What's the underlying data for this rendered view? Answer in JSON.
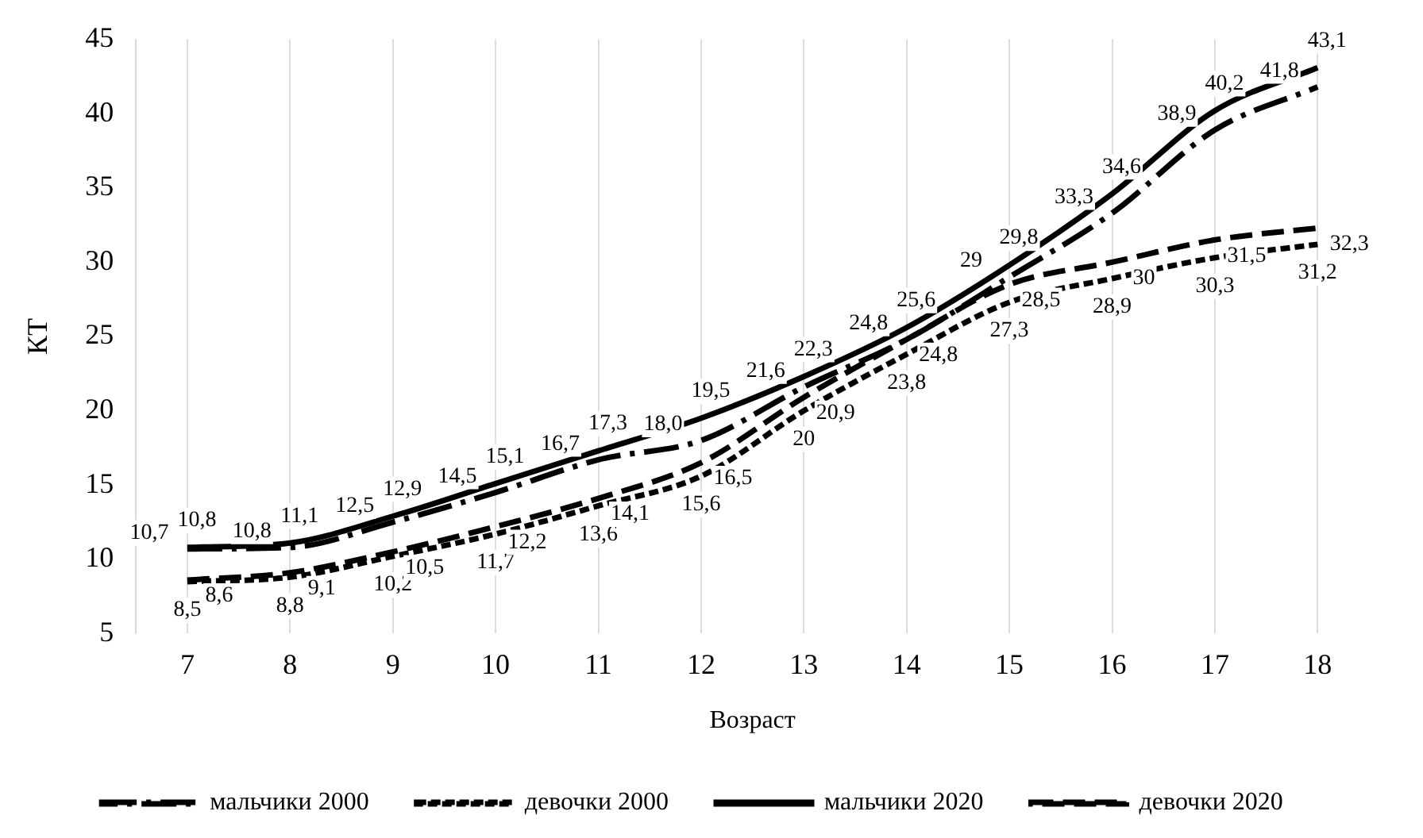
{
  "chart_data": {
    "type": "line",
    "xlabel": "Возраст",
    "ylabel": "КТ",
    "categories": [
      "7",
      "8",
      "9",
      "10",
      "11",
      "12",
      "13",
      "14",
      "15",
      "16",
      "17",
      "18"
    ],
    "series": [
      {
        "name": "мальчики 2000",
        "color": "#000000",
        "line_style": "dashed",
        "values": [
          10.7,
          10.8,
          12.5,
          14.5,
          16.7,
          18.0,
          21.6,
          24.8,
          29,
          33.3,
          38.9,
          41.8
        ],
        "value_labels": [
          "10,7",
          "10,8",
          "12,5",
          "14,5",
          "16,7",
          "18,0",
          "21,6",
          "24,8",
          "29",
          "33,3",
          "38,9",
          "41,8"
        ]
      },
      {
        "name": "девочки 2000",
        "color": "#000000",
        "line_style": "dotted",
        "values": [
          8.5,
          8.8,
          10.2,
          11.7,
          13.6,
          15.6,
          20,
          23.8,
          27.3,
          28.9,
          30.3,
          31.2
        ],
        "value_labels": [
          "8,5",
          "8,8",
          "10,2",
          "11,7",
          "13,6",
          "15,6",
          "20",
          "23,8",
          "27,3",
          "28,9",
          "30,3",
          "31,2"
        ]
      },
      {
        "name": "мальчики 2020",
        "color": "#000000",
        "line_style": "solid",
        "values": [
          10.8,
          11.1,
          12.9,
          15.1,
          17.3,
          19.5,
          22.3,
          25.6,
          29.8,
          34.6,
          40.2,
          43.1
        ],
        "value_labels": [
          "10,8",
          "11,1",
          "12,9",
          "15,1",
          "17,3",
          "19,5",
          "22,3",
          "25,6",
          "29,8",
          "34,6",
          "40,2",
          "43,1"
        ]
      },
      {
        "name": "девочки 2020",
        "color": "#000000",
        "line_style": "dashed",
        "values": [
          8.6,
          9.1,
          10.5,
          12.2,
          14.1,
          16.5,
          20.9,
          24.8,
          28.5,
          30,
          31.5,
          32.3
        ],
        "value_labels": [
          "8,6",
          "9,1",
          "10,5",
          "12,2",
          "14,1",
          "16,5",
          "20,9",
          "24,8",
          "28,5",
          "30",
          "31,5",
          "32,3"
        ]
      }
    ],
    "ylim": [
      5,
      45
    ],
    "yticks": [
      5,
      10,
      15,
      20,
      25,
      30,
      35,
      40,
      45
    ],
    "grid": "x",
    "legend": "bottom",
    "marker": "none"
  }
}
